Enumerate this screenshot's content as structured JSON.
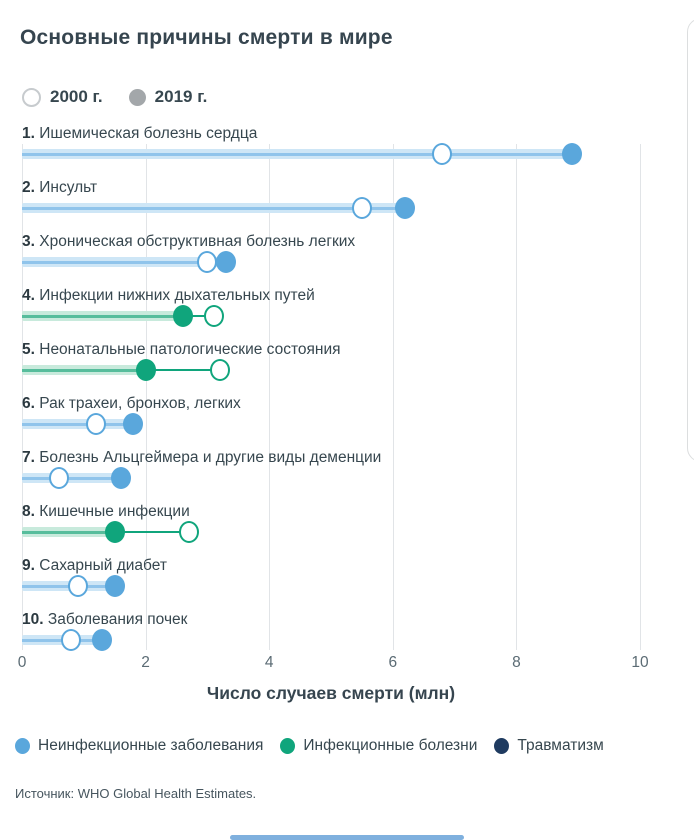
{
  "title": "Основные причины смерти в мире",
  "top_legend": {
    "year_2000": {
      "label": "2000 г.",
      "marker": "open-circle"
    },
    "year_2019": {
      "label": "2019 г.",
      "marker": "filled-circle"
    }
  },
  "chart_data": {
    "type": "dumbbell",
    "title": "Основные причины смерти в мире",
    "xlabel": "Число случаев смерти (млн)",
    "xticks": [
      0,
      2,
      4,
      6,
      8,
      10
    ],
    "xlim": [
      0,
      10.5
    ],
    "grid": "vertical",
    "series_years": [
      "2000",
      "2019"
    ],
    "rows": [
      {
        "rank": "1.",
        "label": "Ишемическая болезнь сердца",
        "category": "noncommunicable",
        "y2000": 6.8,
        "y2019": 8.9
      },
      {
        "rank": "2.",
        "label": "Инсульт",
        "category": "noncommunicable",
        "y2000": 5.5,
        "y2019": 6.2
      },
      {
        "rank": "3.",
        "label": "Хроническая обструктивная болезнь легких",
        "category": "noncommunicable",
        "y2000": 3.0,
        "y2019": 3.3
      },
      {
        "rank": "4.",
        "label": "Инфекции нижних дыхательных путей",
        "category": "communicable",
        "y2000": 3.1,
        "y2019": 2.6
      },
      {
        "rank": "5.",
        "label": "Неонатальные патологические состояния",
        "category": "communicable",
        "y2000": 3.2,
        "y2019": 2.0
      },
      {
        "rank": "6.",
        "label": "Рак трахеи, бронхов, легких",
        "category": "noncommunicable",
        "y2000": 1.2,
        "y2019": 1.8
      },
      {
        "rank": "7.",
        "label": "Болезнь Альцгеймера и другие виды деменции",
        "category": "noncommunicable",
        "y2000": 0.6,
        "y2019": 1.6
      },
      {
        "rank": "8.",
        "label": "Кишечные инфекции",
        "category": "communicable",
        "y2000": 2.7,
        "y2019": 1.5
      },
      {
        "rank": "9.",
        "label": "Сахарный диабет",
        "category": "noncommunicable",
        "y2000": 0.9,
        "y2019": 1.5
      },
      {
        "rank": "10.",
        "label": "Заболевания почек",
        "category": "noncommunicable",
        "y2000": 0.8,
        "y2019": 1.3
      }
    ]
  },
  "category_colors": {
    "noncommunicable": {
      "fill": "#5AA7DC",
      "band": "#CEE6F6",
      "core": "#90C4EB"
    },
    "communicable": {
      "fill": "#10A57C",
      "band": "#C8EADC",
      "core": "#57BD9C"
    },
    "injuries": {
      "fill": "#1F3B60",
      "band": "#C9D2DE",
      "core": "#5C718E"
    }
  },
  "bottom_legend": [
    {
      "label": "Неинфекционные заболевания",
      "color": "#5AA7DC"
    },
    {
      "label": "Инфекционные болезни",
      "color": "#10A57C"
    },
    {
      "label": "Травматизм",
      "color": "#1F3B60"
    }
  ],
  "source": "Источник: WHO Global Health Estimates."
}
